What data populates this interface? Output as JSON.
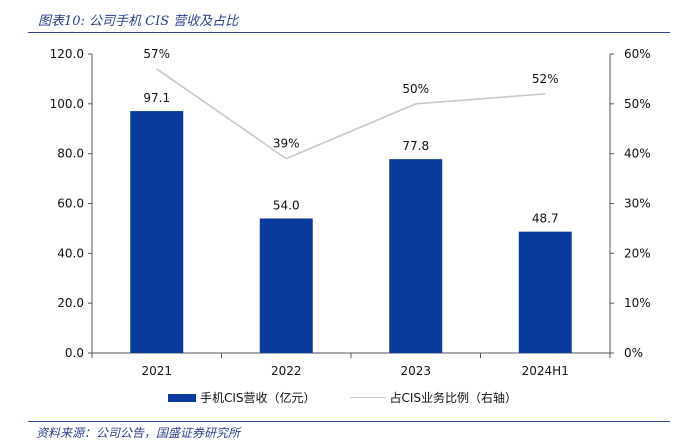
{
  "figure": {
    "title": "图表10:  公司手机 CIS 营收及占比",
    "source": "资料来源：公司公告，国盛证券研究所"
  },
  "colors": {
    "bar": "#0a3b9c",
    "line": "#c8c8c8",
    "accent": "#2b3f8f",
    "axis": "#555555"
  },
  "chart_data": {
    "type": "bar",
    "categories": [
      "2021",
      "2022",
      "2023",
      "2024H1"
    ],
    "series": [
      {
        "name": "手机CIS营收（亿元）",
        "type": "bar",
        "axis": "left",
        "values": [
          97.1,
          54.0,
          77.8,
          48.7
        ],
        "labels": [
          "97.1",
          "54.0",
          "77.8",
          "48.7"
        ]
      },
      {
        "name": "占CIS业务比例（右轴）",
        "type": "line",
        "axis": "right",
        "values": [
          57,
          39,
          50,
          52
        ],
        "labels": [
          "57%",
          "39%",
          "50%",
          "52%"
        ]
      }
    ],
    "ylim": [
      0,
      120
    ],
    "y_ticks": [
      "0.0",
      "20.0",
      "40.0",
      "60.0",
      "80.0",
      "100.0",
      "120.0"
    ],
    "y2lim": [
      0,
      60
    ],
    "y2_ticks": [
      "0%",
      "10%",
      "20%",
      "30%",
      "40%",
      "50%",
      "60%"
    ],
    "grid": false,
    "legend_position": "bottom"
  }
}
